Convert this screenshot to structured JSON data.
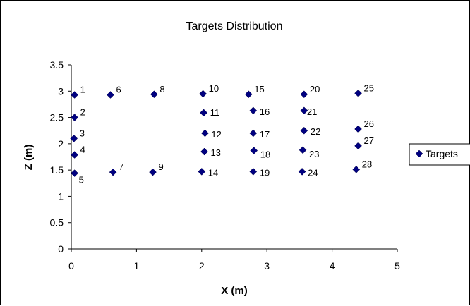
{
  "chart_data": {
    "type": "scatter",
    "title": "Targets Distribution",
    "xlabel": "X (m)",
    "ylabel": "Z (m)",
    "xlim": [
      0,
      5
    ],
    "ylim": [
      0,
      3.5
    ],
    "xticks": [
      "0",
      "1",
      "2",
      "3",
      "4",
      "5"
    ],
    "yticks": [
      "0",
      "0.5",
      "1",
      "1.5",
      "2",
      "2.5",
      "3",
      "3.5"
    ],
    "grid": false,
    "legend_position": "right",
    "series": [
      {
        "name": "Targets",
        "color": "#000080",
        "marker": "diamond",
        "points": [
          {
            "label": "1",
            "x": 0.05,
            "y": 2.93
          },
          {
            "label": "2",
            "x": 0.05,
            "y": 2.5
          },
          {
            "label": "3",
            "x": 0.04,
            "y": 2.1
          },
          {
            "label": "4",
            "x": 0.05,
            "y": 1.79
          },
          {
            "label": "5",
            "x": 0.05,
            "y": 1.44
          },
          {
            "label": "6",
            "x": 0.6,
            "y": 2.93
          },
          {
            "label": "7",
            "x": 0.64,
            "y": 1.46
          },
          {
            "label": "8",
            "x": 1.27,
            "y": 2.94
          },
          {
            "label": "9",
            "x": 1.25,
            "y": 1.46
          },
          {
            "label": "10",
            "x": 2.02,
            "y": 2.95
          },
          {
            "label": "11",
            "x": 2.03,
            "y": 2.59
          },
          {
            "label": "12",
            "x": 2.05,
            "y": 2.2
          },
          {
            "label": "13",
            "x": 2.04,
            "y": 1.85
          },
          {
            "label": "14",
            "x": 2.0,
            "y": 1.47
          },
          {
            "label": "15",
            "x": 2.72,
            "y": 2.94
          },
          {
            "label": "16",
            "x": 2.79,
            "y": 2.63
          },
          {
            "label": "17",
            "x": 2.79,
            "y": 2.2
          },
          {
            "label": "18",
            "x": 2.8,
            "y": 1.87
          },
          {
            "label": "19",
            "x": 2.79,
            "y": 1.47
          },
          {
            "label": "20",
            "x": 3.57,
            "y": 2.94
          },
          {
            "label": "21",
            "x": 3.57,
            "y": 2.63
          },
          {
            "label": "22",
            "x": 3.57,
            "y": 2.25
          },
          {
            "label": "23",
            "x": 3.55,
            "y": 1.88
          },
          {
            "label": "24",
            "x": 3.54,
            "y": 1.47
          },
          {
            "label": "25",
            "x": 4.4,
            "y": 2.96
          },
          {
            "label": "26",
            "x": 4.4,
            "y": 2.28
          },
          {
            "label": "27",
            "x": 4.4,
            "y": 1.96
          },
          {
            "label": "28",
            "x": 4.37,
            "y": 1.51
          }
        ]
      }
    ]
  }
}
